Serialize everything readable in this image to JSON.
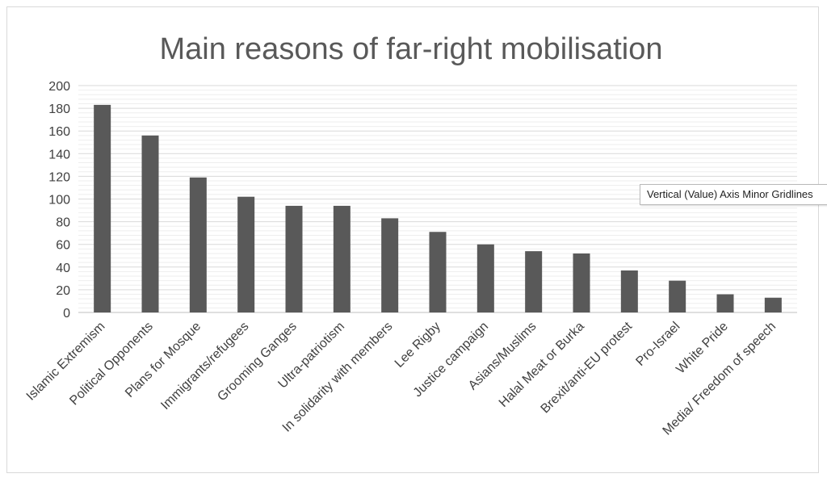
{
  "chart_data": {
    "type": "bar",
    "title": "Main reasons of far-right mobilisation",
    "categories": [
      "Islamic Extremism",
      "Political Opponents",
      "Plans for Mosque",
      "Immigrants/refugees",
      "Grooming Ganges",
      "Ultra-patriotism",
      "In solidarity with members",
      "Lee Rigby",
      "Justice campaign",
      "Asians/Muslims",
      "Halal Meat or  Burka",
      "Brexit/anti-EU protest",
      "Pro-Israel",
      "White Pride",
      "Media/ Freedom of speech"
    ],
    "values": [
      183,
      156,
      119,
      102,
      94,
      94,
      83,
      71,
      60,
      54,
      52,
      37,
      28,
      16,
      13
    ],
    "ylim": [
      0,
      200
    ],
    "ytick_step": 20,
    "yticks": [
      "0",
      "20",
      "40",
      "60",
      "80",
      "100",
      "120",
      "140",
      "160",
      "180",
      "200"
    ],
    "minor_gridlines": true,
    "legend": "none",
    "bar_color": "#595959",
    "grid_color": "#d9d9d9",
    "minor_grid_color": "#eeeeee"
  },
  "tooltip": {
    "text": "Vertical (Value) Axis Minor Gridlines"
  }
}
